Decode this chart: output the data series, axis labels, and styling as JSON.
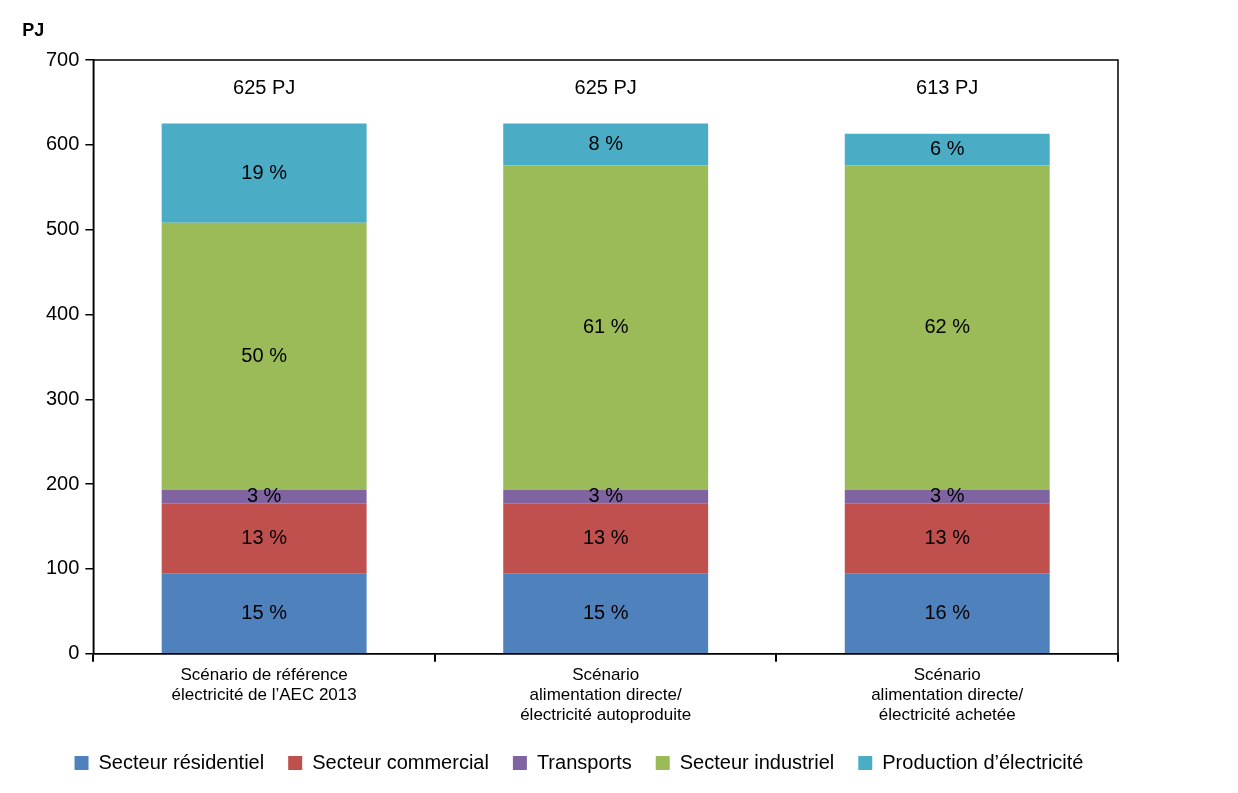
{
  "chart_data": {
    "type": "bar",
    "stacked": true,
    "ylabel": "PJ",
    "categories": [
      "Scénario de référence\nélectricité de l’AEC 2013",
      "Scénario\nalimentation directe/\nélectricité autoproduite",
      "Scénario\nalimentation directe/\nélectricité achetée"
    ],
    "series": [
      {
        "name": "Secteur résidentiel",
        "color": "#4f81bd",
        "values": [
          95,
          95,
          95
        ]
      },
      {
        "name": "Secteur commercial",
        "color": "#c0504d",
        "values": [
          82,
          82,
          82
        ]
      },
      {
        "name": "Transports",
        "color": "#8064a2",
        "values": [
          16,
          16,
          16
        ]
      },
      {
        "name": "Secteur industriel",
        "color": "#9bbb59",
        "values": [
          315,
          383,
          383
        ]
      },
      {
        "name": "Production d’électricité",
        "color": "#4bacc6",
        "values": [
          117,
          49,
          37
        ]
      }
    ],
    "annotations": [
      "15 %",
      "13 %",
      "3 %",
      "50 %",
      "19 %",
      "15 %",
      "13 %",
      "3 %",
      "61 %",
      "8 %",
      "16 %",
      "13 %",
      "3 %",
      "62 %",
      "6 %"
    ],
    "totals": [
      "625 PJ",
      "625 PJ",
      "613 PJ"
    ],
    "ylim": [
      0,
      700
    ],
    "yticks": [
      0,
      100,
      200,
      300,
      400,
      500,
      600,
      700
    ],
    "grid": false,
    "legend": "bottom"
  }
}
